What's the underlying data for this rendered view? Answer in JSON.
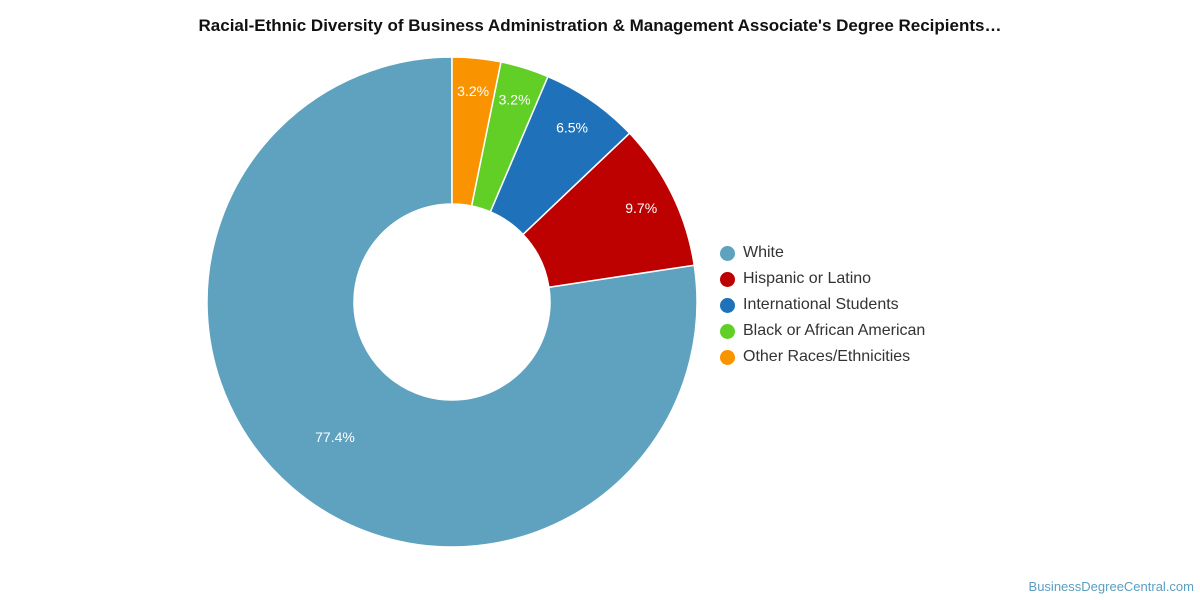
{
  "chart_data": {
    "type": "pie",
    "variant": "donut",
    "title": "Racial-Ethnic Diversity of Business Administration & Management Associate's Degree Recipients…",
    "categories": [
      "White",
      "Hispanic or Latino",
      "International Students",
      "Black or African American",
      "Other Races/Ethnicities"
    ],
    "values": [
      77.4,
      9.7,
      6.5,
      3.2,
      3.2
    ],
    "value_labels": [
      "77.4%",
      "9.7%",
      "6.5%",
      "3.2%",
      "3.2%"
    ],
    "colors": [
      "#5ea2bf",
      "#bd0000",
      "#1f72b9",
      "#62cf27",
      "#f99400"
    ],
    "legend_position": "right"
  },
  "footer": {
    "watermark": "BusinessDegreeCentral.com"
  }
}
